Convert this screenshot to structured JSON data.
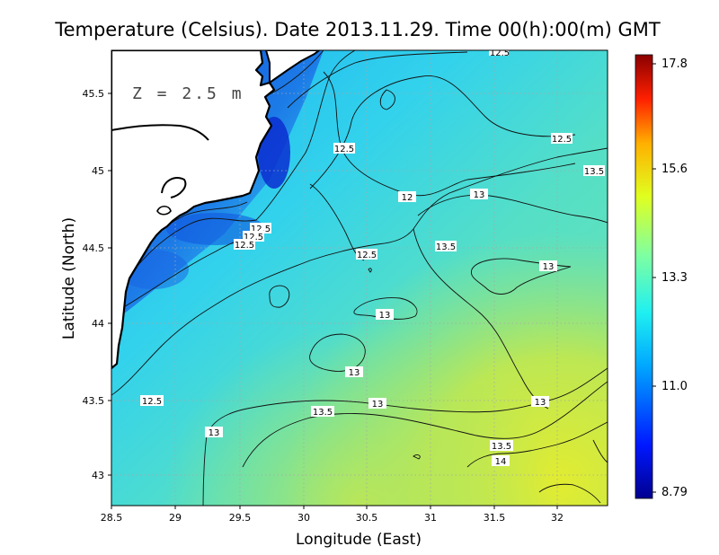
{
  "map": {
    "title": "Temperature (Celsius). Date 2013.11.29. Time 00(h):00(m) GMT",
    "depth_label": "Z = 2.5 m",
    "xlabel": "Longitude (East)",
    "ylabel": "Latitude (North)",
    "x_ticks": [
      "28.5",
      "29",
      "29.5",
      "30",
      "30.5",
      "31",
      "31.5",
      "32"
    ],
    "y_ticks": [
      "43",
      "43.5",
      "44",
      "44.5",
      "45",
      "45.5"
    ],
    "contour_labels": [
      "12.5",
      "12.5",
      "12.5",
      "12",
      "13",
      "13.5",
      "12.5",
      "12.5",
      "13.5",
      "13",
      "13",
      "13",
      "12.5",
      "13",
      "13.5",
      "13",
      "13",
      "13.5",
      "14",
      "12.5",
      "12.5"
    ],
    "colorbar_ticks": [
      "17.8",
      "15.6",
      "13.3",
      "11.0",
      "8.79"
    ]
  },
  "chart_data": {
    "type": "heatmap",
    "title": "Temperature (Celsius). Date 2013.11.29. Time 00(h):00(m) GMT",
    "xlabel": "Longitude (East)",
    "ylabel": "Latitude (North)",
    "xlim": [
      28.5,
      32.4
    ],
    "ylim": [
      42.8,
      45.8
    ],
    "x_ticks": [
      28.5,
      29,
      29.5,
      30,
      30.5,
      31,
      31.5,
      32
    ],
    "y_ticks": [
      43,
      43.5,
      44,
      44.5,
      45,
      45.5
    ],
    "colorbar": {
      "min": 8.79,
      "max": 17.8,
      "ticks": [
        17.8,
        15.6,
        13.3,
        11.0,
        8.79
      ]
    },
    "contour_levels": [
      12,
      12.5,
      13,
      13.5,
      14
    ],
    "grid": true,
    "colors": {
      "cold": "#0a3cd8",
      "cool": "#22c4f4",
      "mid": "#5fe0b0",
      "warm": "#d6ea3a",
      "hot": "#a01010"
    }
  }
}
